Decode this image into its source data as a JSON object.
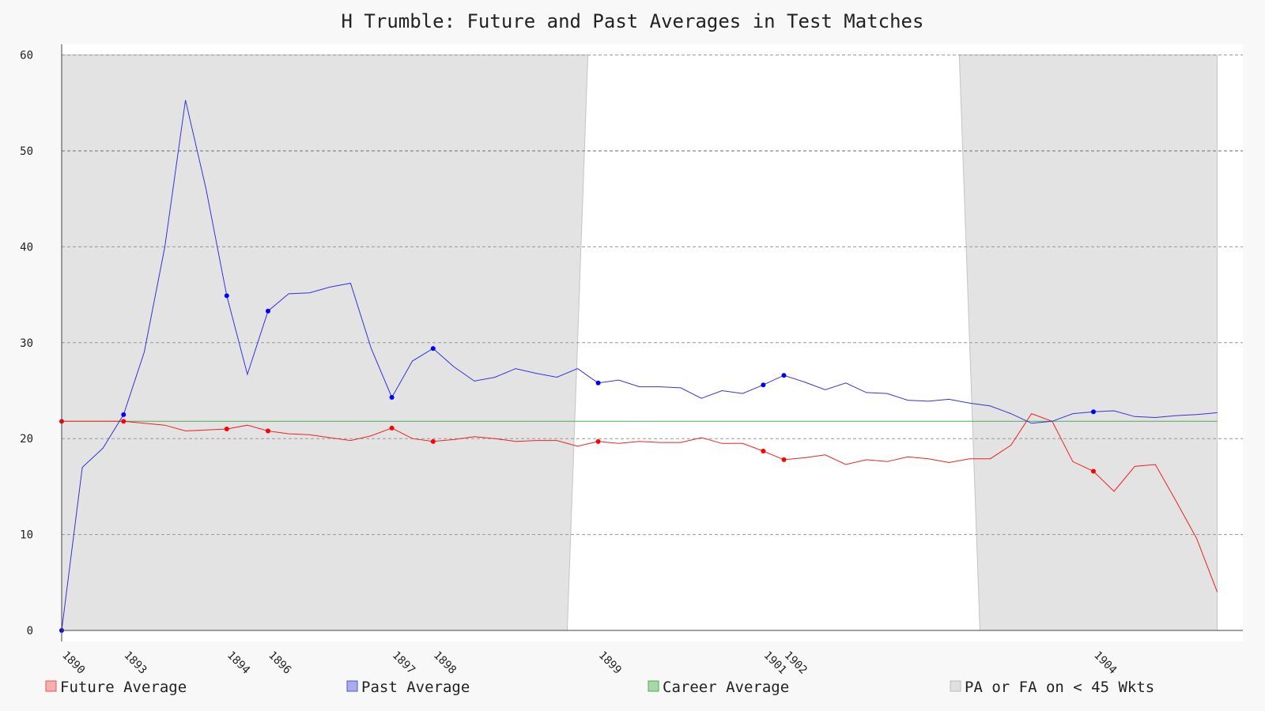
{
  "chart_data": {
    "type": "line",
    "title": "H Trumble: Future and Past Averages in Test Matches",
    "xlabel": "",
    "ylabel": "",
    "ylim": [
      0,
      60
    ],
    "yticks": [
      0,
      10,
      20,
      30,
      40,
      50,
      60
    ],
    "grid": true,
    "legend_position": "bottom",
    "x_tick_labels": [
      {
        "index": 0,
        "label": "1890"
      },
      {
        "index": 3,
        "label": "1893"
      },
      {
        "index": 8,
        "label": "1894"
      },
      {
        "index": 10,
        "label": "1896"
      },
      {
        "index": 16,
        "label": "1897"
      },
      {
        "index": 18,
        "label": "1898"
      },
      {
        "index": 26,
        "label": "1899"
      },
      {
        "index": 34,
        "label": "1901"
      },
      {
        "index": 35,
        "label": "1902"
      },
      {
        "index": 50,
        "label": "1904"
      }
    ],
    "series": [
      {
        "name": "Future Average",
        "color": "#ee2222",
        "values": [
          21.8,
          21.8,
          21.8,
          21.8,
          21.6,
          21.4,
          20.8,
          20.9,
          21.0,
          21.4,
          20.8,
          20.5,
          20.4,
          20.1,
          19.8,
          20.3,
          21.1,
          20.0,
          19.7,
          19.9,
          20.2,
          20.0,
          19.7,
          19.8,
          19.8,
          19.2,
          19.7,
          19.5,
          19.7,
          19.6,
          19.6,
          20.1,
          19.5,
          19.5,
          18.7,
          17.8,
          18.0,
          18.3,
          17.3,
          17.8,
          17.6,
          18.1,
          17.9,
          17.5,
          17.9,
          17.9,
          19.3,
          22.6,
          21.8,
          17.6,
          16.6,
          14.5,
          17.1,
          17.3,
          13.5,
          9.6,
          4.0
        ],
        "marker_indices": [
          0,
          3,
          8,
          10,
          16,
          18,
          26,
          34,
          35,
          50
        ]
      },
      {
        "name": "Past Average",
        "color": "#3333dd",
        "values": [
          0.0,
          17.0,
          19.0,
          22.5,
          29.0,
          40.0,
          55.3,
          46.0,
          34.9,
          26.7,
          33.3,
          35.1,
          35.2,
          35.8,
          36.2,
          29.4,
          24.3,
          28.1,
          29.4,
          27.5,
          26.0,
          26.4,
          27.3,
          26.8,
          26.4,
          27.3,
          25.8,
          26.1,
          25.4,
          25.4,
          25.3,
          24.2,
          25.0,
          24.7,
          25.6,
          26.6,
          25.9,
          25.1,
          25.8,
          24.8,
          24.7,
          24.0,
          23.9,
          24.1,
          23.7,
          23.4,
          22.6,
          21.6,
          21.8,
          22.6,
          22.8,
          22.9,
          22.3,
          22.2,
          22.4,
          22.5,
          22.7
        ],
        "marker_indices": [
          0,
          3,
          8,
          10,
          16,
          18,
          26,
          34,
          35,
          50
        ]
      },
      {
        "name": "Career Average",
        "color": "#55aa55",
        "values": [
          21.8,
          21.8,
          21.8,
          21.8,
          21.8,
          21.8,
          21.8,
          21.8,
          21.8,
          21.8,
          21.8,
          21.8,
          21.8,
          21.8,
          21.8,
          21.8,
          21.8,
          21.8,
          21.8,
          21.8,
          21.8,
          21.8,
          21.8,
          21.8,
          21.8,
          21.8,
          21.8,
          21.8,
          21.8,
          21.8,
          21.8,
          21.8,
          21.8,
          21.8,
          21.8,
          21.8,
          21.8,
          21.8,
          21.8,
          21.8,
          21.8,
          21.8,
          21.8,
          21.8,
          21.8,
          21.8,
          21.8,
          21.8,
          21.8,
          21.8,
          21.8,
          21.8,
          21.8,
          21.8,
          21.8,
          21.8,
          21.8
        ]
      }
    ],
    "shaded_region": {
      "name": "PA or FA on < 45 Wkts",
      "color": "#e3e3e3",
      "clear_top": [
        25.5,
        43.5
      ],
      "clear_bottom": [
        24.5,
        44.5
      ]
    }
  },
  "legend": {
    "items": [
      {
        "label": "Future Average",
        "fill": "#f4b0b0",
        "stroke": "#ee5555"
      },
      {
        "label": "Past Average",
        "fill": "#aaaaee",
        "stroke": "#5555cc"
      },
      {
        "label": "Career Average",
        "fill": "#a8d8a8",
        "stroke": "#55aa55"
      },
      {
        "label": "PA or FA on < 45 Wkts",
        "fill": "#e0e0e0",
        "stroke": "#bbbbbb"
      }
    ]
  }
}
